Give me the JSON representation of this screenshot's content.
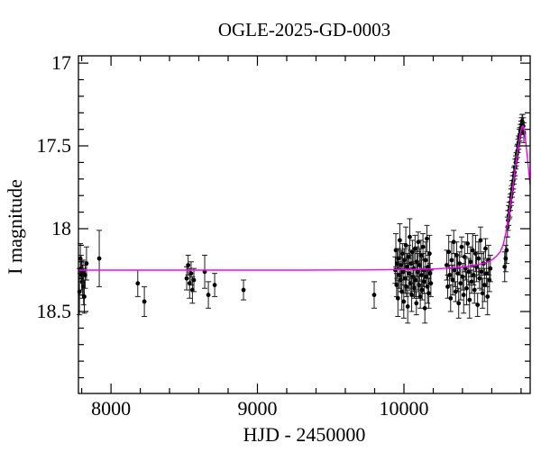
{
  "chart_data": {
    "type": "scatter",
    "title": "OGLE-2025-GD-0003",
    "xlabel": "HJD - 2450000",
    "ylabel": "I magnitude",
    "x_range": [
      7778,
      10862
    ],
    "y_range_mag": [
      16.956,
      18.995
    ],
    "y_axis_inverted": true,
    "grid": false,
    "legend": "none",
    "x_major_ticks": [
      {
        "value": 8000,
        "label": "8000"
      },
      {
        "value": 9000,
        "label": "9000"
      },
      {
        "value": 10000,
        "label": "10000"
      }
    ],
    "x_minor_step": 200,
    "y_major_ticks": [
      {
        "value": 17,
        "label": "17"
      },
      {
        "value": 17.5,
        "label": "17.5"
      },
      {
        "value": 18,
        "label": "18"
      },
      {
        "value": 18.5,
        "label": "18.5"
      }
    ],
    "y_minor_step": 0.1,
    "colors": {
      "points": "#000000",
      "error_bars": "#1a1a1a",
      "model_curve": "#ff00ff",
      "frame": "#000000",
      "background": "#ffffff"
    },
    "baseline_mag": 18.25,
    "peak": {
      "hjd": 10809,
      "mag": 17.38
    },
    "model_curve": [
      [
        7778,
        18.25
      ],
      [
        8300,
        18.25
      ],
      [
        8800,
        18.25
      ],
      [
        9300,
        18.25
      ],
      [
        9700,
        18.249
      ],
      [
        10000,
        18.247
      ],
      [
        10200,
        18.243
      ],
      [
        10330,
        18.237
      ],
      [
        10430,
        18.228
      ],
      [
        10500,
        18.218
      ],
      [
        10550,
        18.207
      ],
      [
        10580,
        18.198
      ],
      [
        10610,
        18.182
      ],
      [
        10635,
        18.163
      ],
      [
        10658,
        18.138
      ],
      [
        10678,
        18.095
      ],
      [
        10696,
        18.025
      ],
      [
        10712,
        17.935
      ],
      [
        10727,
        17.845
      ],
      [
        10740,
        17.77
      ],
      [
        10752,
        17.69
      ],
      [
        10763,
        17.615
      ],
      [
        10773,
        17.55
      ],
      [
        10782,
        17.495
      ],
      [
        10790,
        17.45
      ],
      [
        10797,
        17.415
      ],
      [
        10803,
        17.392
      ],
      [
        10809,
        17.38
      ],
      [
        10815,
        17.382
      ],
      [
        10820,
        17.4
      ],
      [
        10826,
        17.435
      ],
      [
        10833,
        17.49
      ],
      [
        10841,
        17.558
      ],
      [
        10850,
        17.638
      ],
      [
        10856,
        17.688
      ],
      [
        10862,
        17.735
      ]
    ],
    "points": [
      [
        7785,
        18.38,
        0.14
      ],
      [
        7791,
        18.18,
        0.09
      ],
      [
        7796,
        18.24,
        0.08
      ],
      [
        7800,
        18.28,
        0.09
      ],
      [
        7805,
        18.32,
        0.1
      ],
      [
        7809,
        18.26,
        0.07
      ],
      [
        7813,
        18.35,
        0.11
      ],
      [
        7818,
        18.41,
        0.1
      ],
      [
        7824,
        18.28,
        0.08
      ],
      [
        7833,
        18.21,
        0.1
      ],
      [
        7920,
        18.18,
        0.17
      ],
      [
        8183,
        18.33,
        0.08
      ],
      [
        8228,
        18.44,
        0.09
      ],
      [
        8517,
        18.3,
        0.07
      ],
      [
        8527,
        18.22,
        0.06
      ],
      [
        8537,
        18.33,
        0.09
      ],
      [
        8547,
        18.27,
        0.07
      ],
      [
        8556,
        18.37,
        0.08
      ],
      [
        8566,
        18.31,
        0.07
      ],
      [
        8640,
        18.26,
        0.1
      ],
      [
        8665,
        18.4,
        0.08
      ],
      [
        8708,
        18.34,
        0.07
      ],
      [
        8905,
        18.37,
        0.06
      ],
      [
        9797,
        18.4,
        0.08
      ],
      [
        9941,
        18.25,
        0.08
      ],
      [
        9945,
        18.13,
        0.1
      ],
      [
        9950,
        18.34,
        0.07
      ],
      [
        9954,
        18.21,
        0.09
      ],
      [
        9959,
        18.42,
        0.11
      ],
      [
        9963,
        18.18,
        0.06
      ],
      [
        9968,
        18.28,
        0.08
      ],
      [
        9972,
        18.07,
        0.1
      ],
      [
        9977,
        18.31,
        0.07
      ],
      [
        9981,
        18.22,
        0.09
      ],
      [
        9986,
        18.38,
        0.11
      ],
      [
        9990,
        18.15,
        0.06
      ],
      [
        9995,
        18.26,
        0.08
      ],
      [
        9999,
        18.44,
        0.1
      ],
      [
        10004,
        18.19,
        0.07
      ],
      [
        10008,
        18.3,
        0.09
      ],
      [
        10013,
        18.1,
        0.11
      ],
      [
        10017,
        18.35,
        0.06
      ],
      [
        10022,
        18.23,
        0.08
      ],
      [
        10026,
        18.47,
        0.1
      ],
      [
        10031,
        18.17,
        0.07
      ],
      [
        10035,
        18.27,
        0.09
      ],
      [
        10040,
        18.05,
        0.11
      ],
      [
        10044,
        18.33,
        0.06
      ],
      [
        10049,
        18.21,
        0.08
      ],
      [
        10053,
        18.4,
        0.1
      ],
      [
        10058,
        18.14,
        0.07
      ],
      [
        10062,
        18.29,
        0.09
      ],
      [
        10067,
        18.24,
        0.11
      ],
      [
        10071,
        18.36,
        0.06
      ],
      [
        10076,
        18.12,
        0.08
      ],
      [
        10080,
        18.31,
        0.1
      ],
      [
        10085,
        18.45,
        0.07
      ],
      [
        10089,
        18.2,
        0.09
      ],
      [
        10094,
        18.26,
        0.11
      ],
      [
        10098,
        18.08,
        0.06
      ],
      [
        10103,
        18.34,
        0.08
      ],
      [
        10107,
        18.22,
        0.1
      ],
      [
        10112,
        18.41,
        0.07
      ],
      [
        10116,
        18.16,
        0.09
      ],
      [
        10121,
        18.28,
        0.11
      ],
      [
        10125,
        18.37,
        0.06
      ],
      [
        10130,
        18.11,
        0.08
      ],
      [
        10134,
        18.25,
        0.1
      ],
      [
        10139,
        18.32,
        0.07
      ],
      [
        10143,
        18.48,
        0.09
      ],
      [
        10148,
        18.19,
        0.11
      ],
      [
        10152,
        18.29,
        0.06
      ],
      [
        10157,
        18.06,
        0.08
      ],
      [
        10161,
        18.35,
        0.1
      ],
      [
        10166,
        18.23,
        0.07
      ],
      [
        10170,
        18.39,
        0.09
      ],
      [
        10175,
        18.15,
        0.11
      ],
      [
        10179,
        18.27,
        0.06
      ],
      [
        10184,
        18.33,
        0.08
      ],
      [
        10292,
        18.22,
        0.09
      ],
      [
        10299,
        18.35,
        0.07
      ],
      [
        10306,
        18.14,
        0.1
      ],
      [
        10312,
        18.28,
        0.06
      ],
      [
        10319,
        18.42,
        0.08
      ],
      [
        10326,
        18.19,
        0.11
      ],
      [
        10333,
        18.31,
        0.09
      ],
      [
        10340,
        18.08,
        0.07
      ],
      [
        10346,
        18.25,
        0.1
      ],
      [
        10353,
        18.38,
        0.06
      ],
      [
        10360,
        18.16,
        0.08
      ],
      [
        10367,
        18.27,
        0.11
      ],
      [
        10374,
        18.45,
        0.09
      ],
      [
        10380,
        18.21,
        0.07
      ],
      [
        10387,
        18.33,
        0.1
      ],
      [
        10394,
        18.11,
        0.06
      ],
      [
        10401,
        18.29,
        0.08
      ],
      [
        10408,
        18.4,
        0.11
      ],
      [
        10414,
        18.17,
        0.09
      ],
      [
        10421,
        18.24,
        0.07
      ],
      [
        10428,
        18.36,
        0.1
      ],
      [
        10435,
        18.09,
        0.06
      ],
      [
        10442,
        18.26,
        0.08
      ],
      [
        10448,
        18.43,
        0.11
      ],
      [
        10455,
        18.2,
        0.09
      ],
      [
        10462,
        18.32,
        0.07
      ],
      [
        10469,
        18.13,
        0.1
      ],
      [
        10476,
        18.28,
        0.06
      ],
      [
        10482,
        18.37,
        0.08
      ],
      [
        10489,
        18.15,
        0.11
      ],
      [
        10496,
        18.23,
        0.09
      ],
      [
        10503,
        18.46,
        0.07
      ],
      [
        10510,
        18.18,
        0.1
      ],
      [
        10516,
        18.3,
        0.06
      ],
      [
        10523,
        18.07,
        0.08
      ],
      [
        10530,
        18.26,
        0.11
      ],
      [
        10537,
        18.39,
        0.09
      ],
      [
        10544,
        18.21,
        0.07
      ],
      [
        10550,
        18.34,
        0.1
      ],
      [
        10557,
        18.12,
        0.06
      ],
      [
        10564,
        18.27,
        0.08
      ],
      [
        10571,
        18.41,
        0.11
      ],
      [
        10578,
        18.19,
        0.09
      ],
      [
        10584,
        18.31,
        0.07
      ],
      [
        10590,
        18.24,
        0.08
      ],
      [
        10688,
        18.23,
        0.09
      ],
      [
        10695,
        18.18,
        0.08
      ],
      [
        10701,
        18.13,
        0.08
      ],
      [
        10707,
        17.99,
        0.06
      ],
      [
        10711,
        17.95,
        0.06
      ],
      [
        10715,
        17.92,
        0.06
      ],
      [
        10719,
        17.89,
        0.05
      ],
      [
        10723,
        17.87,
        0.06
      ],
      [
        10727,
        17.84,
        0.05
      ],
      [
        10731,
        17.81,
        0.05
      ],
      [
        10735,
        17.79,
        0.05
      ],
      [
        10739,
        17.76,
        0.05
      ],
      [
        10743,
        17.73,
        0.05
      ],
      [
        10747,
        17.71,
        0.05
      ],
      [
        10751,
        17.68,
        0.05
      ],
      [
        10755,
        17.66,
        0.04
      ],
      [
        10759,
        17.63,
        0.05
      ],
      [
        10763,
        17.6,
        0.04
      ],
      [
        10767,
        17.58,
        0.04
      ],
      [
        10771,
        17.55,
        0.05
      ],
      [
        10775,
        17.53,
        0.04
      ],
      [
        10779,
        17.5,
        0.04
      ],
      [
        10783,
        17.48,
        0.04
      ],
      [
        10787,
        17.45,
        0.05
      ],
      [
        10791,
        17.43,
        0.04
      ],
      [
        10795,
        17.41,
        0.04
      ],
      [
        10799,
        17.39,
        0.04
      ],
      [
        10803,
        17.37,
        0.04
      ],
      [
        10807,
        17.35,
        0.04
      ],
      [
        10811,
        17.36,
        0.05
      ],
      [
        10815,
        17.38,
        0.05
      ],
      [
        10819,
        17.42,
        0.06
      ]
    ]
  }
}
